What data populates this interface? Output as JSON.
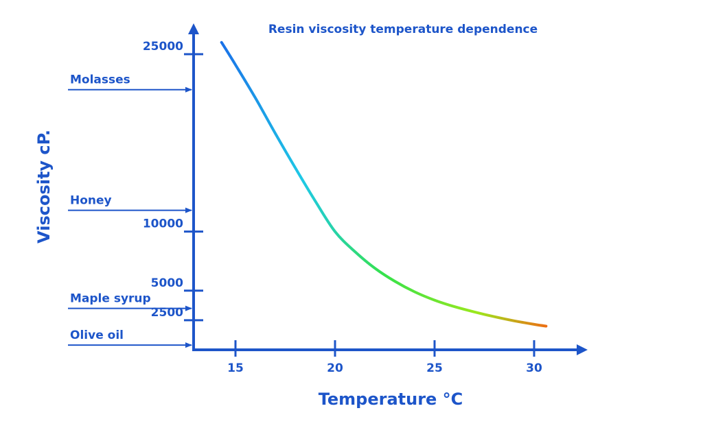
{
  "chart_data": {
    "type": "line",
    "title": "Resin viscosity temperature dependence",
    "xlabel": "Temperature °C",
    "ylabel": "Viscosity cP.",
    "x_ticks": [
      15,
      20,
      25,
      30
    ],
    "y_ticks": [
      2500,
      5000,
      10000,
      25000
    ],
    "xlim": [
      13,
      32
    ],
    "ylim": [
      0,
      27500
    ],
    "grid": false,
    "legend": "none",
    "series": [
      {
        "x": [
          14.3,
          15,
          16,
          17,
          18,
          19,
          20,
          21,
          22,
          23,
          24,
          25,
          26,
          27,
          28,
          29,
          30,
          30.6
        ],
        "y": [
          26000,
          24100,
          21300,
          18300,
          15400,
          12600,
          10000,
          8300,
          6900,
          5800,
          4900,
          4200,
          3650,
          3200,
          2800,
          2450,
          2150,
          2000
        ]
      }
    ],
    "reference_lines": [
      {
        "label": "Molasses",
        "value": 22000
      },
      {
        "label": "Honey",
        "value": 11800
      },
      {
        "label": "Maple syrup",
        "value": 3500
      },
      {
        "label": "Olive oil",
        "value": 400
      }
    ],
    "colors": {
      "axis": "#1d55c9",
      "curve_gradient": [
        "#1a6fe8",
        "#1ec9e6",
        "#36e24a",
        "#9be81d",
        "#f06a14"
      ]
    }
  }
}
